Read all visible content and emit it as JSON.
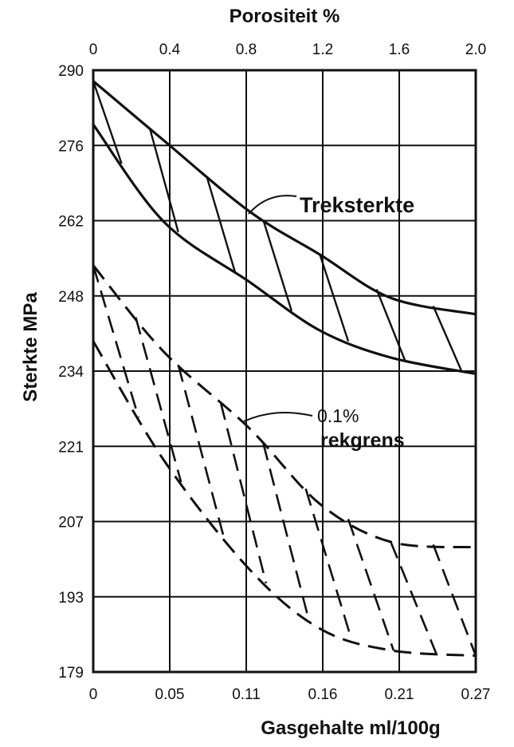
{
  "chart_data": {
    "type": "line",
    "title": "",
    "top_axis": {
      "label": "Porositeit %",
      "ticks": [
        "0",
        "0.4",
        "0.8",
        "1.2",
        "1.6",
        "2.0"
      ],
      "range": [
        0,
        2.0
      ]
    },
    "x_axis": {
      "label": "Gasgehalte ml/100g",
      "ticks": [
        "0",
        "0.05",
        "0.11",
        "0.16",
        "0.21",
        "0.27"
      ],
      "range": [
        0,
        0.27
      ]
    },
    "y_axis": {
      "label": "Sterkte MPa",
      "ticks": [
        "290",
        "276",
        "262",
        "248",
        "234",
        "221",
        "207",
        "193",
        "179"
      ],
      "range": [
        179,
        290
      ]
    },
    "grid": true,
    "annotations": [
      {
        "text": "Treksterkte"
      },
      {
        "text": "0.1%"
      },
      {
        "text": "rekgrens"
      }
    ],
    "bands": [
      {
        "ref": "Treksterkte",
        "style": "solid",
        "upper": [
          [
            0,
            288
          ],
          [
            0.05,
            277
          ],
          [
            0.11,
            264
          ],
          [
            0.16,
            256
          ],
          [
            0.21,
            248
          ],
          [
            0.27,
            245
          ]
        ],
        "lower": [
          [
            0,
            280
          ],
          [
            0.05,
            262
          ],
          [
            0.11,
            251
          ],
          [
            0.16,
            242
          ],
          [
            0.21,
            237
          ],
          [
            0.27,
            234
          ]
        ]
      },
      {
        "ref": "0.1% rekgrens",
        "style": "dashed",
        "upper": [
          [
            0,
            254
          ],
          [
            0.05,
            238
          ],
          [
            0.11,
            224
          ],
          [
            0.16,
            210
          ],
          [
            0.21,
            203
          ],
          [
            0.27,
            202
          ]
        ],
        "lower": [
          [
            0,
            240
          ],
          [
            0.05,
            218
          ],
          [
            0.11,
            198
          ],
          [
            0.16,
            187
          ],
          [
            0.21,
            183
          ],
          [
            0.27,
            182
          ]
        ]
      }
    ]
  }
}
